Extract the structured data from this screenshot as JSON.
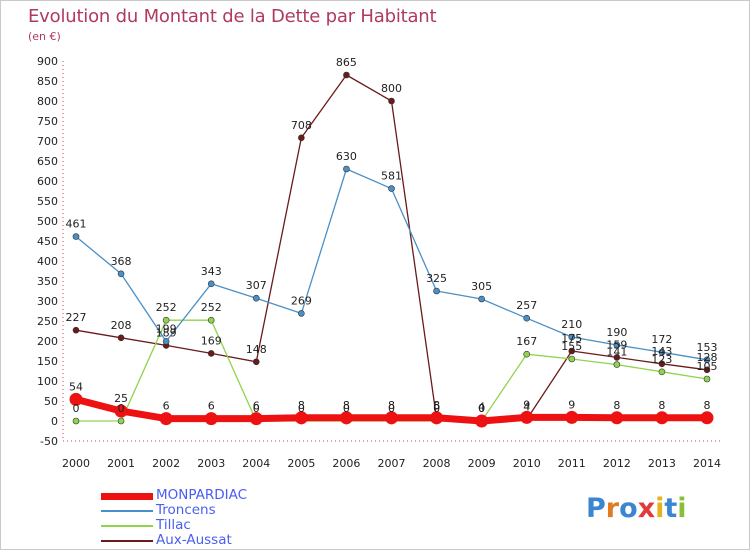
{
  "title": "Evolution du Montant de la Dette par Habitant",
  "unit": "(en €)",
  "logo": {
    "text": "Proxiti",
    "colors": [
      "#3a86d1",
      "#e07b22",
      "#3a86d1",
      "#e03a3a",
      "#e8b21d",
      "#3a86d1",
      "#8bbf3a"
    ]
  },
  "chart_data": {
    "type": "line",
    "x": [
      "2000",
      "2001",
      "2002",
      "2003",
      "2004",
      "2005",
      "2006",
      "2007",
      "2008",
      "2009",
      "2010",
      "2011",
      "2012",
      "2013",
      "2014"
    ],
    "ylim": [
      -50,
      900
    ],
    "yticks": [
      -50,
      0,
      50,
      100,
      150,
      200,
      250,
      300,
      350,
      400,
      450,
      500,
      550,
      600,
      650,
      700,
      750,
      800,
      850,
      900
    ],
    "grid": false,
    "legend_position": "bottom-left",
    "series": [
      {
        "name": "MONPARDIAC",
        "color": "#ee1111",
        "values": [
          54,
          25,
          6,
          6,
          6,
          8,
          8,
          8,
          8,
          0,
          9,
          9,
          8,
          8,
          8
        ],
        "labels": [
          "54",
          "25",
          "6",
          "6",
          "6",
          "8",
          "8",
          "8",
          "8",
          "0",
          "9",
          "9",
          "8",
          "8",
          "8"
        ]
      },
      {
        "name": "Troncens",
        "color": "#4a90c8",
        "values": [
          461,
          368,
          199,
          343,
          307,
          269,
          630,
          581,
          325,
          305,
          257,
          210,
          190,
          172,
          153
        ],
        "labels": [
          "461",
          "368",
          "199",
          "343",
          "307",
          "269",
          "630",
          "581",
          "325",
          "305",
          "257",
          "210",
          "190",
          "172",
          "153"
        ]
      },
      {
        "name": "Tillac",
        "color": "#8fd44e",
        "values": [
          0,
          0,
          252,
          252,
          0,
          0,
          0,
          0,
          0,
          0,
          167,
          155,
          141,
          123,
          105
        ],
        "labels": [
          "0",
          "0",
          "252",
          "252",
          "0",
          "0",
          "0",
          "0",
          "0",
          "0",
          "167",
          "155",
          "141",
          "123",
          "105"
        ]
      },
      {
        "name": "Aux-Aussat",
        "color": "#6b1a1a",
        "values": [
          227,
          208,
          189,
          169,
          148,
          708,
          865,
          800,
          6,
          4,
          4,
          175,
          159,
          143,
          128
        ],
        "labels": [
          "227",
          "208",
          "189",
          "169",
          "148",
          "708",
          "865",
          "800",
          "6",
          "4",
          "4",
          "175",
          "159",
          "143",
          "128"
        ]
      }
    ]
  }
}
